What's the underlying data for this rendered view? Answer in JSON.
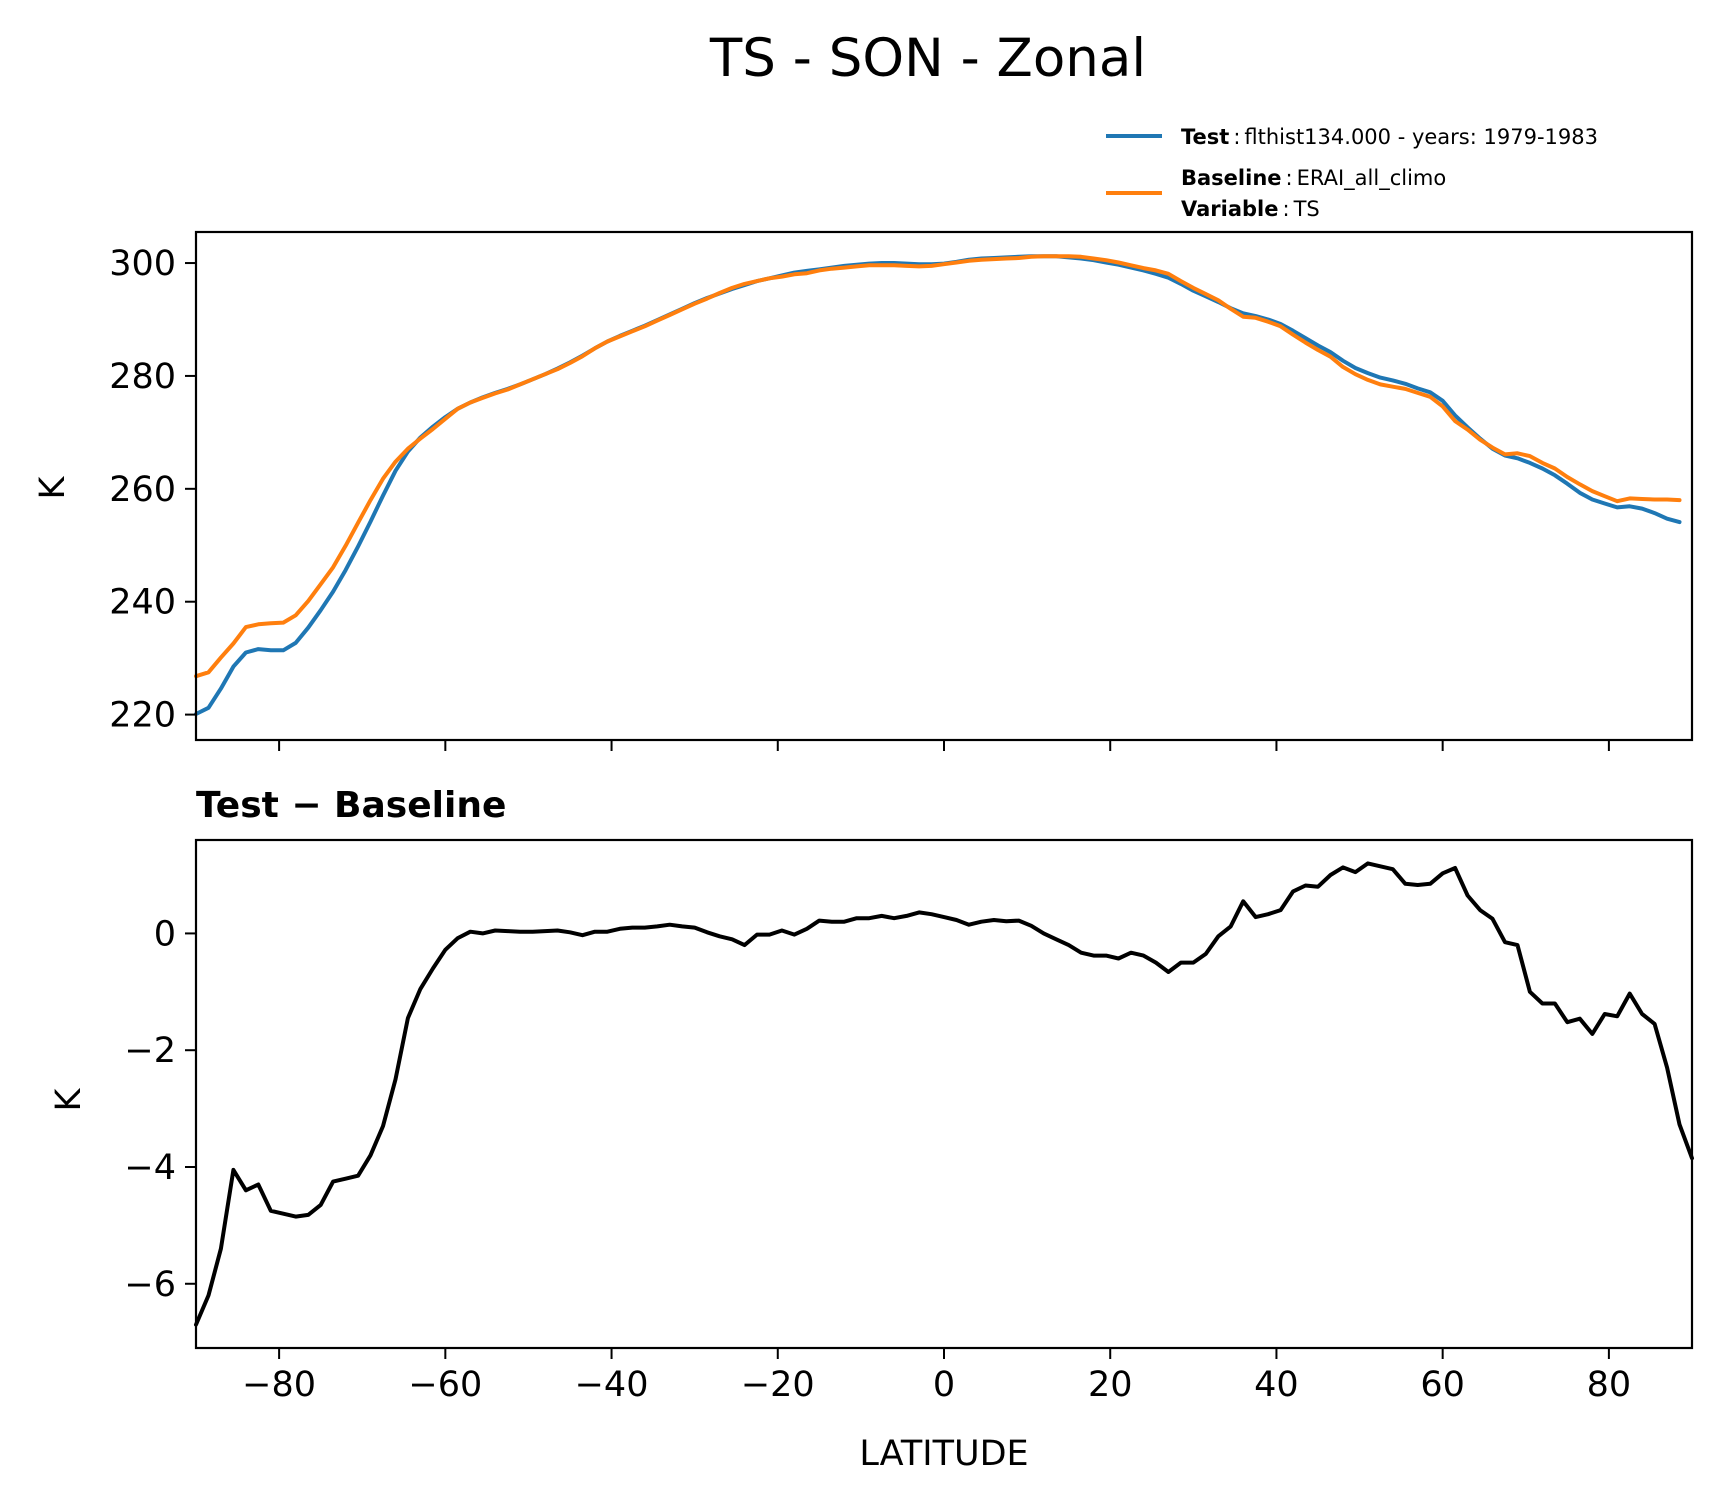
{
  "chart_data": {
    "type": "line",
    "title": "TS - SON - Zonal",
    "x_values": [
      -90,
      -88.5,
      -87,
      -85.5,
      -84,
      -82.5,
      -81,
      -79.5,
      -78,
      -76.5,
      -75,
      -73.5,
      -72,
      -70.5,
      -69,
      -67.5,
      -66,
      -64.5,
      -63,
      -61.5,
      -60,
      -58.5,
      -57,
      -55.5,
      -54,
      -52.5,
      -51,
      -49.5,
      -48,
      -46.5,
      -45,
      -43.5,
      -42,
      -40.5,
      -39,
      -37.5,
      -36,
      -34.5,
      -33,
      -31.5,
      -30,
      -28.5,
      -27,
      -25.5,
      -24,
      -22.5,
      -21,
      -19.5,
      -18,
      -16.5,
      -15,
      -13.5,
      -12,
      -10.5,
      -9,
      -7.5,
      -6,
      -4.5,
      -3,
      -1.5,
      0,
      1.5,
      3,
      4.5,
      6,
      7.5,
      9,
      10.5,
      12,
      13.5,
      15,
      16.5,
      18,
      19.5,
      21,
      22.5,
      24,
      25.5,
      27,
      28.5,
      30,
      31.5,
      33,
      34.5,
      36,
      37.5,
      39,
      40.5,
      42,
      43.5,
      45,
      46.5,
      48,
      49.5,
      51,
      52.5,
      54,
      55.5,
      57,
      58.5,
      60,
      61.5,
      63,
      64.5,
      66,
      67.5,
      69,
      70.5,
      72,
      73.5,
      75,
      76.5,
      78,
      79.5,
      81,
      82.5,
      84,
      85.5,
      87,
      88.5,
      90
    ],
    "xlim": [
      -90,
      90
    ],
    "xticks": [
      -80,
      -60,
      -40,
      -20,
      0,
      20,
      40,
      60,
      80
    ],
    "xtick_labels": [
      "−80",
      "−60",
      "−40",
      "−20",
      "0",
      "20",
      "40",
      "60",
      "80"
    ],
    "xlabel": "LATITUDE",
    "legend": {
      "position": "top-right",
      "entries": [
        {
          "key": "Test",
          "sep": ":",
          "value": "flthist134.000 - years: 1979-1983",
          "color": "#1f77b4"
        },
        {
          "key": "Baseline",
          "sep": ":",
          "value": "ERAI_all_climo",
          "color": "#ff7f0e"
        },
        {
          "key": "Variable",
          "sep": ":",
          "value": "TS"
        }
      ]
    },
    "panels": [
      {
        "name": "zonal-mean",
        "ylabel": "K",
        "ylim": [
          215.5,
          305.5
        ],
        "yticks": [
          220,
          240,
          260,
          280,
          300
        ],
        "ytick_labels": [
          "220",
          "240",
          "260",
          "280",
          "300"
        ],
        "series": [
          {
            "name": "Test",
            "color": "#1f77b4",
            "values": [
              220.1,
              221.2,
              224.6,
              228.5,
              231.0,
              231.6,
              231.4,
              231.4,
              232.7,
              235.4,
              238.5,
              241.8,
              245.6,
              249.8,
              254.2,
              258.8,
              263.2,
              266.6,
              269.1,
              271.0,
              272.7,
              274.2,
              275.3,
              276.2,
              277.0,
              277.7,
              278.5,
              279.4,
              280.3,
              281.3,
              282.4,
              283.6,
              284.9,
              286.1,
              287.1,
              288.0,
              288.9,
              289.9,
              290.9,
              291.9,
              292.9,
              293.8,
              294.6,
              295.4,
              296.1,
              296.8,
              297.3,
              297.8,
              298.3,
              298.6,
              298.9,
              299.2,
              299.5,
              299.7,
              299.9,
              300.0,
              300.0,
              299.9,
              299.8,
              299.8,
              299.9,
              300.2,
              300.6,
              300.8,
              300.9,
              301.0,
              301.1,
              301.2,
              301.2,
              301.2,
              301.0,
              300.8,
              300.5,
              300.1,
              299.7,
              299.2,
              298.7,
              298.1,
              297.4,
              296.3,
              295.1,
              294.1,
              293.1,
              292.0,
              291.1,
              290.6,
              290.0,
              289.2,
              288.0,
              286.7,
              285.4,
              284.2,
              282.7,
              281.4,
              280.5,
              279.7,
              279.2,
              278.6,
              277.8,
              277.1,
              275.6,
              273.0,
              270.9,
              268.9,
              267.1,
              265.9,
              265.4,
              264.6,
              263.6,
              262.4,
              260.9,
              259.3,
              258.1,
              257.4,
              256.7,
              256.9,
              256.5,
              255.7,
              254.7,
              254.1
            ]
          },
          {
            "name": "Baseline",
            "color": "#ff7f0e",
            "values": [
              226.8,
              227.5,
              230.1,
              232.6,
              235.5,
              236.0,
              236.2,
              236.3,
              237.6,
              240.1,
              243.1,
              246.1,
              249.9,
              254.0,
              258.0,
              261.8,
              264.8,
              267.1,
              268.9,
              270.6,
              272.4,
              274.2,
              275.3,
              276.1,
              276.9,
              277.6,
              278.5,
              279.4,
              280.3,
              281.2,
              282.3,
              283.5,
              284.9,
              286.1,
              287.0,
              287.9,
              288.8,
              289.8,
              290.8,
              291.8,
              292.8,
              293.7,
              294.7,
              295.6,
              296.3,
              296.8,
              297.3,
              297.6,
              298.0,
              298.2,
              298.7,
              299.0,
              299.2,
              299.4,
              299.6,
              299.6,
              299.6,
              299.5,
              299.4,
              299.5,
              299.8,
              300.1,
              300.4,
              300.6,
              300.7,
              300.8,
              300.9,
              301.1,
              301.2,
              301.2,
              301.2,
              301.1,
              300.8,
              300.5,
              300.1,
              299.6,
              299.1,
              298.7,
              298.1,
              296.8,
              295.6,
              294.5,
              293.4,
              291.9,
              290.5,
              290.3,
              289.6,
              288.8,
              287.3,
              285.9,
              284.6,
              283.4,
              281.6,
              280.3,
              279.3,
              278.5,
              278.1,
              277.7,
              277.0,
              276.3,
              274.6,
              272.0,
              270.5,
              268.7,
              267.3,
              266.1,
              266.3,
              265.8,
              264.6,
              263.6,
              262.1,
              260.8,
              259.6,
              258.7,
              257.8,
              258.3,
              258.2,
              258.1,
              258.1,
              258.0
            ]
          }
        ]
      },
      {
        "name": "difference",
        "subtitle": "Test − Baseline",
        "ylabel": "K",
        "ylim": [
          -7.1,
          1.6
        ],
        "yticks": [
          -6,
          -4,
          -2,
          0
        ],
        "ytick_labels": [
          "−6",
          "−4",
          "−2",
          "0"
        ],
        "series": [
          {
            "name": "Test − Baseline",
            "color": "#000000",
            "values": [
              -6.7,
              -6.2,
              -5.4,
              -4.05,
              -4.4,
              -4.3,
              -4.75,
              -4.8,
              -4.85,
              -4.82,
              -4.65,
              -4.25,
              -4.2,
              -4.15,
              -3.8,
              -3.3,
              -2.5,
              -1.45,
              -0.95,
              -0.6,
              -0.28,
              -0.08,
              0.03,
              0.0,
              0.05,
              0.04,
              0.03,
              0.03,
              0.04,
              0.05,
              0.02,
              -0.03,
              0.03,
              0.03,
              0.08,
              0.1,
              0.1,
              0.12,
              0.15,
              0.12,
              0.1,
              0.02,
              -0.05,
              -0.1,
              -0.2,
              -0.02,
              -0.02,
              0.05,
              -0.02,
              0.08,
              0.22,
              0.2,
              0.2,
              0.26,
              0.26,
              0.3,
              0.26,
              0.3,
              0.36,
              0.33,
              0.28,
              0.23,
              0.15,
              0.2,
              0.23,
              0.21,
              0.22,
              0.13,
              0.0,
              -0.1,
              -0.2,
              -0.33,
              -0.38,
              -0.38,
              -0.43,
              -0.33,
              -0.38,
              -0.5,
              -0.66,
              -0.5,
              -0.5,
              -0.35,
              -0.05,
              0.12,
              0.55,
              0.28,
              0.33,
              0.4,
              0.72,
              0.82,
              0.8,
              1.0,
              1.13,
              1.05,
              1.2,
              1.15,
              1.1,
              0.85,
              0.83,
              0.85,
              1.03,
              1.12,
              0.65,
              0.4,
              0.25,
              -0.15,
              -0.2,
              -1.0,
              -1.2,
              -1.2,
              -1.52,
              -1.46,
              -1.72,
              -1.38,
              -1.42,
              -1.03,
              -1.38,
              -1.55,
              -2.3,
              -3.27,
              -3.85
            ]
          }
        ]
      }
    ]
  }
}
